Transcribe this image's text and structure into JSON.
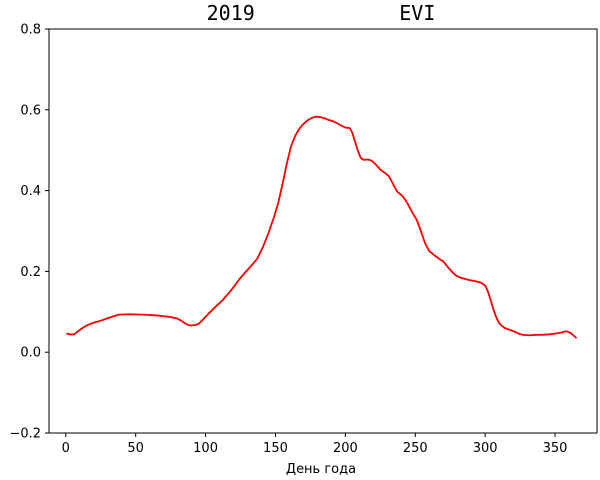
{
  "chart_data": {
    "type": "line",
    "title": "2019            EVI",
    "xlabel": "День года",
    "ylabel": "",
    "xlim": [
      -12,
      380
    ],
    "ylim": [
      -0.2,
      0.8
    ],
    "xticks": [
      0,
      50,
      100,
      150,
      200,
      250,
      300,
      350
    ],
    "yticks": [
      -0.2,
      0.0,
      0.2,
      0.4,
      0.6,
      0.8
    ],
    "xtick_labels": [
      "0",
      "50",
      "100",
      "150",
      "200",
      "250",
      "300",
      "350"
    ],
    "ytick_labels": [
      "−0.2",
      "0.0",
      "0.2",
      "0.4",
      "0.6",
      "0.8"
    ],
    "grid": false,
    "series": [
      {
        "color": "#ff0000",
        "x": [
          1,
          3,
          6,
          8,
          12,
          16,
          20,
          25,
          30,
          35,
          38,
          45,
          55,
          65,
          70,
          75,
          80,
          83,
          86,
          89,
          92,
          95,
          98,
          102,
          107,
          112,
          118,
          124,
          129,
          133,
          137,
          141,
          145,
          149,
          152,
          155,
          158,
          161,
          164,
          167,
          170,
          173,
          176,
          179,
          182,
          185,
          188,
          191,
          194,
          197,
          200,
          203,
          205,
          207,
          209,
          211,
          213,
          215,
          217,
          219,
          221,
          223,
          225,
          227,
          229,
          231,
          233,
          235,
          237,
          239,
          241,
          243,
          245,
          248,
          251,
          254,
          257,
          260,
          262,
          264,
          266,
          268,
          270,
          273,
          276,
          279,
          282,
          285,
          288,
          291,
          294,
          297,
          300,
          302,
          304,
          306,
          308,
          310,
          312,
          314,
          316,
          318,
          321,
          324,
          327,
          330,
          333,
          336,
          340,
          345,
          350,
          355,
          358,
          361,
          363,
          365
        ],
        "y": [
          0.046,
          0.044,
          0.044,
          0.05,
          0.06,
          0.068,
          0.073,
          0.078,
          0.084,
          0.09,
          0.093,
          0.094,
          0.093,
          0.091,
          0.089,
          0.087,
          0.083,
          0.077,
          0.07,
          0.066,
          0.067,
          0.07,
          0.08,
          0.095,
          0.112,
          0.128,
          0.152,
          0.18,
          0.2,
          0.215,
          0.232,
          0.26,
          0.295,
          0.335,
          0.37,
          0.415,
          0.465,
          0.508,
          0.535,
          0.553,
          0.565,
          0.574,
          0.58,
          0.583,
          0.582,
          0.579,
          0.575,
          0.572,
          0.567,
          0.561,
          0.556,
          0.555,
          0.543,
          0.52,
          0.498,
          0.481,
          0.476,
          0.477,
          0.476,
          0.474,
          0.467,
          0.46,
          0.452,
          0.447,
          0.442,
          0.436,
          0.424,
          0.41,
          0.398,
          0.392,
          0.386,
          0.376,
          0.365,
          0.345,
          0.328,
          0.3,
          0.27,
          0.25,
          0.245,
          0.239,
          0.234,
          0.229,
          0.225,
          0.212,
          0.2,
          0.19,
          0.185,
          0.182,
          0.179,
          0.177,
          0.175,
          0.172,
          0.165,
          0.15,
          0.128,
          0.105,
          0.086,
          0.072,
          0.065,
          0.06,
          0.057,
          0.055,
          0.051,
          0.046,
          0.043,
          0.042,
          0.042,
          0.043,
          0.043,
          0.044,
          0.046,
          0.049,
          0.052,
          0.048,
          0.042,
          0.036
        ]
      }
    ]
  }
}
